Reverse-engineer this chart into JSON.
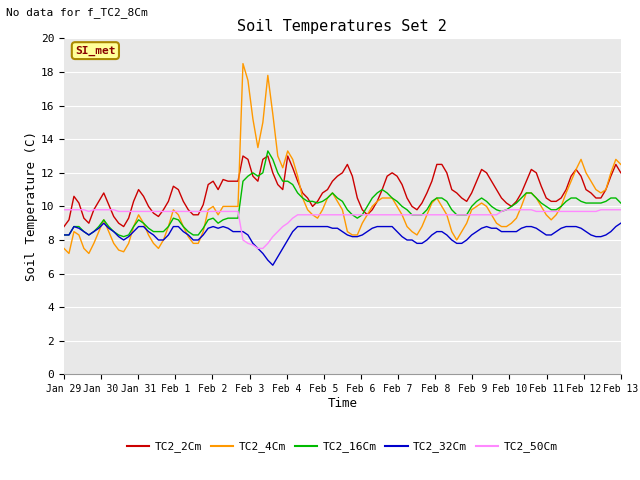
{
  "title": "Soil Temperatures Set 2",
  "subtitle": "No data for f_TC2_8Cm",
  "xlabel": "Time",
  "ylabel": "Soil Temperature (C)",
  "annotation": "SI_met",
  "ylim": [
    0,
    20
  ],
  "yticks": [
    0,
    2,
    4,
    6,
    8,
    10,
    12,
    14,
    16,
    18,
    20
  ],
  "x_labels": [
    "Jan 29",
    "Jan 30",
    "Jan 31",
    "Feb 1",
    "Feb 2",
    "Feb 3",
    "Feb 4",
    "Feb 5",
    "Feb 6",
    "Feb 7",
    "Feb 8",
    "Feb 9",
    "Feb 10",
    "Feb 11",
    "Feb 12",
    "Feb 13"
  ],
  "series": {
    "TC2_2Cm": {
      "color": "#CC0000",
      "lw": 1.0
    },
    "TC2_4Cm": {
      "color": "#FF9900",
      "lw": 1.0
    },
    "TC2_16Cm": {
      "color": "#00BB00",
      "lw": 1.0
    },
    "TC2_32Cm": {
      "color": "#0000CC",
      "lw": 1.0
    },
    "TC2_50Cm": {
      "color": "#FF88FF",
      "lw": 1.0
    }
  },
  "bg_color": "#E8E8E8",
  "fig_bg": "#FFFFFF",
  "grid_color": "#FFFFFF",
  "TC2_2Cm": [
    8.8,
    9.2,
    10.6,
    10.2,
    9.3,
    9.0,
    9.8,
    10.3,
    10.8,
    10.1,
    9.4,
    9.0,
    8.8,
    9.3,
    10.3,
    11.0,
    10.6,
    10.0,
    9.6,
    9.4,
    9.8,
    10.3,
    11.2,
    11.0,
    10.3,
    9.8,
    9.5,
    9.5,
    10.1,
    11.3,
    11.5,
    11.0,
    11.6,
    11.5,
    11.5,
    11.5,
    13.0,
    12.8,
    11.8,
    11.5,
    12.8,
    13.0,
    12.0,
    11.3,
    11.0,
    13.0,
    12.3,
    11.5,
    10.8,
    10.5,
    10.0,
    10.3,
    10.8,
    11.0,
    11.5,
    11.8,
    12.0,
    12.5,
    11.8,
    10.5,
    9.8,
    9.5,
    9.8,
    10.3,
    11.0,
    11.8,
    12.0,
    11.8,
    11.3,
    10.5,
    10.0,
    9.8,
    10.2,
    10.8,
    11.5,
    12.5,
    12.5,
    12.0,
    11.0,
    10.8,
    10.5,
    10.3,
    10.8,
    11.5,
    12.2,
    12.0,
    11.5,
    11.0,
    10.5,
    10.2,
    10.0,
    10.3,
    10.8,
    11.5,
    12.2,
    12.0,
    11.2,
    10.5,
    10.3,
    10.3,
    10.5,
    11.0,
    11.8,
    12.2,
    11.8,
    11.0,
    10.8,
    10.5,
    10.5,
    11.0,
    11.8,
    12.5,
    12.0
  ],
  "TC2_4Cm": [
    7.5,
    7.2,
    8.5,
    8.3,
    7.5,
    7.2,
    7.8,
    8.5,
    9.2,
    8.5,
    7.8,
    7.4,
    7.3,
    7.8,
    8.8,
    9.5,
    9.0,
    8.3,
    7.8,
    7.5,
    8.0,
    8.8,
    9.8,
    9.5,
    8.8,
    8.2,
    7.8,
    7.8,
    8.5,
    9.8,
    10.0,
    9.5,
    10.0,
    10.0,
    10.0,
    10.0,
    18.5,
    17.5,
    15.2,
    13.5,
    15.0,
    17.8,
    15.5,
    13.0,
    12.3,
    13.3,
    12.8,
    11.8,
    10.5,
    9.8,
    9.5,
    9.3,
    9.8,
    10.5,
    10.8,
    10.3,
    9.8,
    8.5,
    8.3,
    8.3,
    9.0,
    9.5,
    10.0,
    10.3,
    10.5,
    10.5,
    10.5,
    10.0,
    9.5,
    8.8,
    8.5,
    8.3,
    8.8,
    9.5,
    10.2,
    10.5,
    10.0,
    9.5,
    8.5,
    8.0,
    8.5,
    9.0,
    9.8,
    10.0,
    10.2,
    10.0,
    9.5,
    9.0,
    8.8,
    8.8,
    9.0,
    9.3,
    10.0,
    10.8,
    10.8,
    10.5,
    10.0,
    9.5,
    9.2,
    9.5,
    10.0,
    10.8,
    11.5,
    12.2,
    12.8,
    12.0,
    11.5,
    11.0,
    10.8,
    11.0,
    12.0,
    12.8,
    12.5
  ],
  "TC2_16Cm": [
    8.3,
    8.3,
    8.8,
    8.8,
    8.5,
    8.3,
    8.5,
    8.8,
    9.2,
    8.8,
    8.5,
    8.3,
    8.2,
    8.3,
    8.8,
    9.2,
    9.0,
    8.7,
    8.5,
    8.5,
    8.5,
    8.8,
    9.3,
    9.2,
    8.8,
    8.5,
    8.3,
    8.3,
    8.7,
    9.2,
    9.3,
    9.0,
    9.2,
    9.3,
    9.3,
    9.3,
    11.5,
    11.8,
    12.0,
    11.8,
    12.0,
    13.3,
    12.8,
    12.0,
    11.5,
    11.5,
    11.3,
    10.8,
    10.5,
    10.3,
    10.3,
    10.2,
    10.3,
    10.5,
    10.8,
    10.5,
    10.3,
    9.8,
    9.5,
    9.3,
    9.5,
    10.0,
    10.5,
    10.8,
    11.0,
    10.8,
    10.5,
    10.3,
    10.0,
    9.8,
    9.5,
    9.5,
    9.5,
    9.8,
    10.3,
    10.5,
    10.5,
    10.3,
    9.8,
    9.5,
    9.5,
    9.5,
    10.0,
    10.3,
    10.5,
    10.3,
    10.0,
    9.8,
    9.7,
    9.8,
    10.0,
    10.2,
    10.5,
    10.8,
    10.8,
    10.5,
    10.2,
    10.0,
    9.8,
    9.8,
    10.0,
    10.3,
    10.5,
    10.5,
    10.3,
    10.2,
    10.2,
    10.2,
    10.2,
    10.3,
    10.5,
    10.5,
    10.2
  ],
  "TC2_32Cm": [
    8.3,
    8.3,
    8.8,
    8.7,
    8.5,
    8.3,
    8.5,
    8.7,
    9.0,
    8.7,
    8.5,
    8.2,
    8.0,
    8.2,
    8.5,
    8.8,
    8.8,
    8.5,
    8.3,
    8.0,
    8.0,
    8.3,
    8.8,
    8.8,
    8.5,
    8.3,
    8.0,
    8.0,
    8.3,
    8.7,
    8.8,
    8.7,
    8.8,
    8.7,
    8.5,
    8.5,
    8.5,
    8.3,
    7.8,
    7.5,
    7.2,
    6.8,
    6.5,
    7.0,
    7.5,
    8.0,
    8.5,
    8.8,
    8.8,
    8.8,
    8.8,
    8.8,
    8.8,
    8.8,
    8.7,
    8.7,
    8.5,
    8.3,
    8.2,
    8.2,
    8.3,
    8.5,
    8.7,
    8.8,
    8.8,
    8.8,
    8.8,
    8.5,
    8.2,
    8.0,
    8.0,
    7.8,
    7.8,
    8.0,
    8.3,
    8.5,
    8.5,
    8.3,
    8.0,
    7.8,
    7.8,
    8.0,
    8.3,
    8.5,
    8.7,
    8.8,
    8.7,
    8.7,
    8.5,
    8.5,
    8.5,
    8.5,
    8.7,
    8.8,
    8.8,
    8.7,
    8.5,
    8.3,
    8.3,
    8.5,
    8.7,
    8.8,
    8.8,
    8.8,
    8.7,
    8.5,
    8.3,
    8.2,
    8.2,
    8.3,
    8.5,
    8.8,
    9.0
  ],
  "TC2_50Cm": [
    9.8,
    9.8,
    9.8,
    9.8,
    9.8,
    9.7,
    9.8,
    9.8,
    9.8,
    9.8,
    9.8,
    9.7,
    9.7,
    9.7,
    9.7,
    9.7,
    9.7,
    9.7,
    9.7,
    9.7,
    9.7,
    9.7,
    9.7,
    9.7,
    9.7,
    9.7,
    9.7,
    9.7,
    9.7,
    9.7,
    9.7,
    9.7,
    9.7,
    9.7,
    9.7,
    9.7,
    8.0,
    7.8,
    7.7,
    7.5,
    7.5,
    7.8,
    8.2,
    8.5,
    8.8,
    9.0,
    9.3,
    9.5,
    9.5,
    9.5,
    9.5,
    9.5,
    9.5,
    9.5,
    9.5,
    9.5,
    9.5,
    9.5,
    9.5,
    9.5,
    9.5,
    9.5,
    9.5,
    9.5,
    9.5,
    9.5,
    9.5,
    9.5,
    9.5,
    9.5,
    9.5,
    9.5,
    9.5,
    9.5,
    9.5,
    9.5,
    9.5,
    9.5,
    9.5,
    9.5,
    9.5,
    9.5,
    9.5,
    9.5,
    9.5,
    9.5,
    9.5,
    9.5,
    9.7,
    9.8,
    9.8,
    9.8,
    9.8,
    9.8,
    9.8,
    9.7,
    9.7,
    9.7,
    9.7,
    9.7,
    9.7,
    9.7,
    9.7,
    9.7,
    9.7,
    9.7,
    9.7,
    9.7,
    9.8,
    9.8,
    9.8,
    9.8,
    9.8
  ]
}
